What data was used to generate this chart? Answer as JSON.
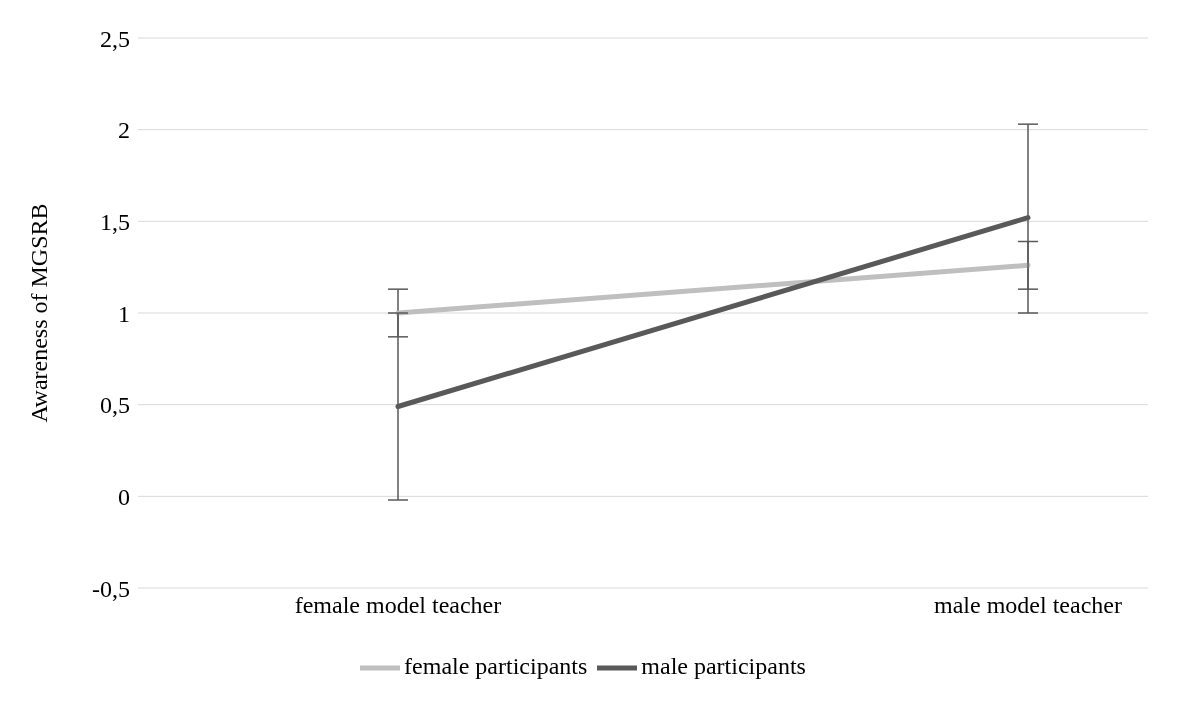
{
  "chart_data": {
    "type": "line",
    "ylabel": "Awareness of MGSRB",
    "categories": [
      "female model teacher",
      "male model teacher"
    ],
    "series": [
      {
        "name": "female participants",
        "color": "#bfbfbf",
        "values": [
          1.0,
          1.26
        ],
        "errors": [
          [
            0.87,
            1.13
          ],
          [
            1.13,
            1.39
          ]
        ]
      },
      {
        "name": "male participants",
        "color": "#595959",
        "values": [
          0.49,
          1.52
        ],
        "errors": [
          [
            -0.02,
            1.0
          ],
          [
            1.0,
            2.03
          ]
        ]
      }
    ],
    "ylim": [
      -0.5,
      2.5
    ],
    "yticks": [
      {
        "value": -0.5,
        "label": "-0,5"
      },
      0,
      {
        "value": 0.5,
        "label": "0,5"
      },
      1,
      {
        "value": 1.5,
        "label": "1,5"
      },
      2,
      {
        "value": 2.5,
        "label": "2,5"
      }
    ],
    "grid": "y",
    "legend": "bottom",
    "marker": "none",
    "line_style": "solid"
  }
}
